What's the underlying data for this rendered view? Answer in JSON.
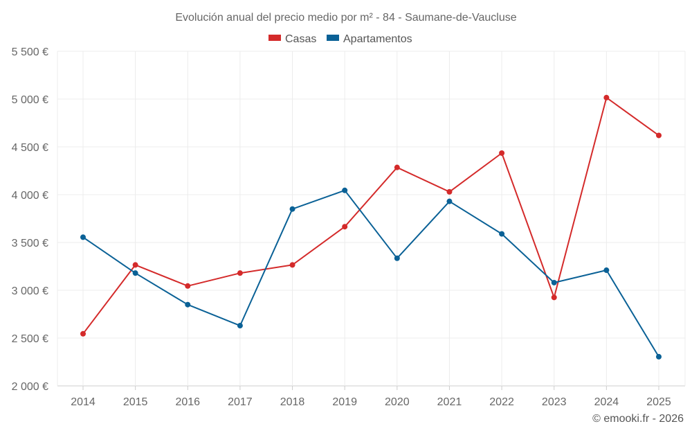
{
  "chart_data": {
    "type": "line",
    "title": "Evolución anual del precio medio por m² - 84 - Saumane-de-Vaucluse",
    "categories": [
      "2014",
      "2015",
      "2016",
      "2017",
      "2018",
      "2019",
      "2020",
      "2021",
      "2022",
      "2023",
      "2024",
      "2025"
    ],
    "series": [
      {
        "name": "Casas",
        "color": "#d42a2a",
        "values": [
          2545,
          3265,
          3045,
          3180,
          3265,
          3665,
          4285,
          4030,
          4435,
          2925,
          5015,
          4620
        ]
      },
      {
        "name": "Apartamentos",
        "color": "#0a6196",
        "values": [
          3555,
          3180,
          2850,
          2630,
          3850,
          4045,
          3335,
          3930,
          3590,
          3080,
          3210,
          2305
        ]
      }
    ],
    "ylim": [
      2000,
      5500
    ],
    "yticks": [
      2000,
      2500,
      3000,
      3500,
      4000,
      4500,
      5000,
      5500
    ],
    "ytick_labels": [
      "2 000 €",
      "2 500 €",
      "3 000 €",
      "3 500 €",
      "4 000 €",
      "4 500 €",
      "5 000 €",
      "5 500 €"
    ],
    "xlabel": "",
    "ylabel": "",
    "grid": true,
    "legend": "top-center"
  },
  "credit": "© emooki.fr - 2026"
}
